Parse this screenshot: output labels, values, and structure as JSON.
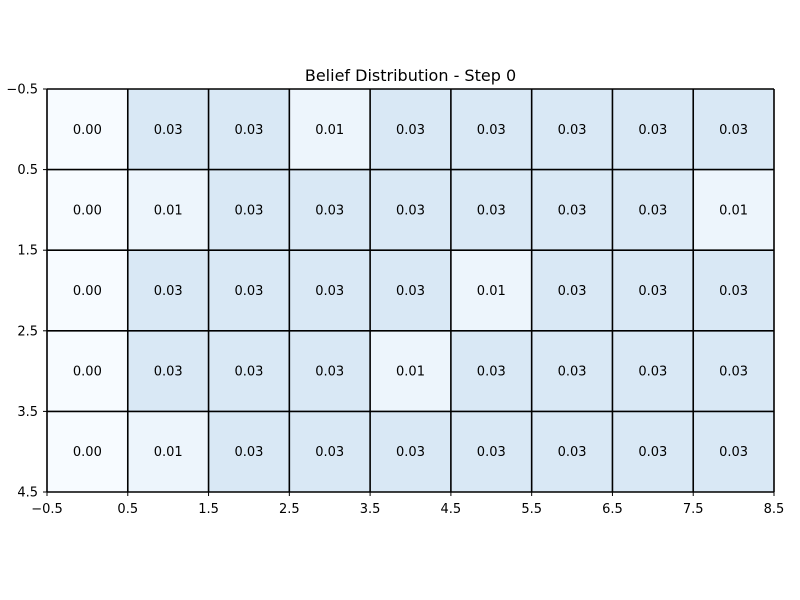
{
  "chart_data": {
    "type": "heatmap",
    "title": "Belief Distribution - Step 0",
    "xlabel": "",
    "ylabel": "",
    "x_ticks": [
      "−0.5",
      "0.5",
      "1.5",
      "2.5",
      "3.5",
      "4.5",
      "5.5",
      "6.5",
      "7.5",
      "8.5"
    ],
    "y_ticks": [
      "−0.5",
      "0.5",
      "1.5",
      "2.5",
      "3.5",
      "4.5"
    ],
    "xlim": [
      -0.5,
      8.5
    ],
    "ylim": [
      4.5,
      -0.5
    ],
    "grid": true,
    "colormap": "Blues",
    "value_range": [
      0,
      0.2
    ],
    "values": [
      [
        "0.00",
        "0.03",
        "0.03",
        "0.01",
        "0.03",
        "0.03",
        "0.03",
        "0.03",
        "0.03"
      ],
      [
        "0.00",
        "0.01",
        "0.03",
        "0.03",
        "0.03",
        "0.03",
        "0.03",
        "0.03",
        "0.01"
      ],
      [
        "0.00",
        "0.03",
        "0.03",
        "0.03",
        "0.03",
        "0.01",
        "0.03",
        "0.03",
        "0.03"
      ],
      [
        "0.00",
        "0.03",
        "0.03",
        "0.03",
        "0.01",
        "0.03",
        "0.03",
        "0.03",
        "0.03"
      ],
      [
        "0.00",
        "0.01",
        "0.03",
        "0.03",
        "0.03",
        "0.03",
        "0.03",
        "0.03",
        "0.03"
      ]
    ]
  }
}
